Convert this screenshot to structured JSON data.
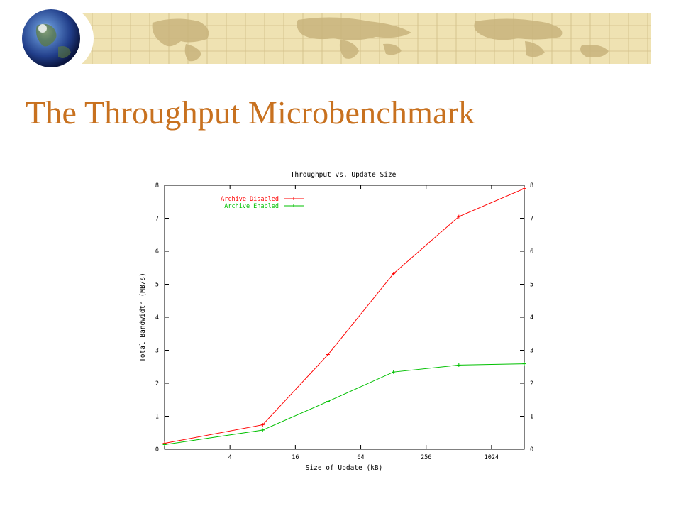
{
  "slide": {
    "title": "The Throughput Microbenchmark",
    "title_color": "#C8711F"
  },
  "banner": {
    "icon": "globe-icon",
    "background_color": "#EFE2B2",
    "map_color": "#C9B47C"
  },
  "chart_data": {
    "type": "line",
    "title": "Throughput vs. Update Size",
    "xlabel": "Size of Update (kB)",
    "ylabel": "Total Bandwidth (MB/s)",
    "x_scale": "log2",
    "xlim": [
      1,
      2048
    ],
    "ylim": [
      0,
      8
    ],
    "x_ticks": [
      4,
      16,
      64,
      256,
      1024
    ],
    "x_tick_labels": [
      "4",
      "16",
      "64",
      "256",
      "1024"
    ],
    "y_ticks": [
      0,
      1,
      2,
      3,
      4,
      5,
      6,
      7,
      8
    ],
    "y_tick_labels": [
      "0",
      "1",
      "2",
      "3",
      "4",
      "5",
      "6",
      "7",
      "8"
    ],
    "right_axis_mirrored": true,
    "grid": false,
    "legend_position": "top-left",
    "series": [
      {
        "name": "Archive Disabled",
        "color": "#FF0000",
        "x": [
          1,
          8,
          32,
          128,
          512,
          2048
        ],
        "y": [
          0.18,
          0.74,
          2.87,
          5.32,
          7.05,
          7.9
        ]
      },
      {
        "name": "Archive Enabled",
        "color": "#00C000",
        "x": [
          1,
          8,
          32,
          128,
          512,
          2048
        ],
        "y": [
          0.14,
          0.58,
          1.45,
          2.34,
          2.55,
          2.59
        ]
      }
    ]
  }
}
